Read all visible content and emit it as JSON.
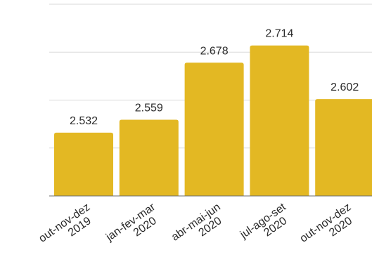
{
  "chart_data": {
    "type": "bar",
    "categories": [
      [
        "out-nov-dez",
        "2019"
      ],
      [
        "jan-fev-mar",
        "2020"
      ],
      [
        "abr-mai-jun",
        "2020"
      ],
      [
        "jul-ago-set",
        "2020"
      ],
      [
        "out-nov-dez",
        "2020"
      ]
    ],
    "values": [
      2.532,
      2.559,
      2.678,
      2.714,
      2.602
    ],
    "value_labels": [
      "2.532",
      "2.559",
      "2.678",
      "2.714",
      "2.602"
    ],
    "ylim": [
      2.4,
      2.8
    ],
    "grid": true,
    "colors": {
      "bar": "#e3b823",
      "grid": "#d9d9d9",
      "axis": "#6b6b6b",
      "text": "#2a2a2a"
    }
  }
}
